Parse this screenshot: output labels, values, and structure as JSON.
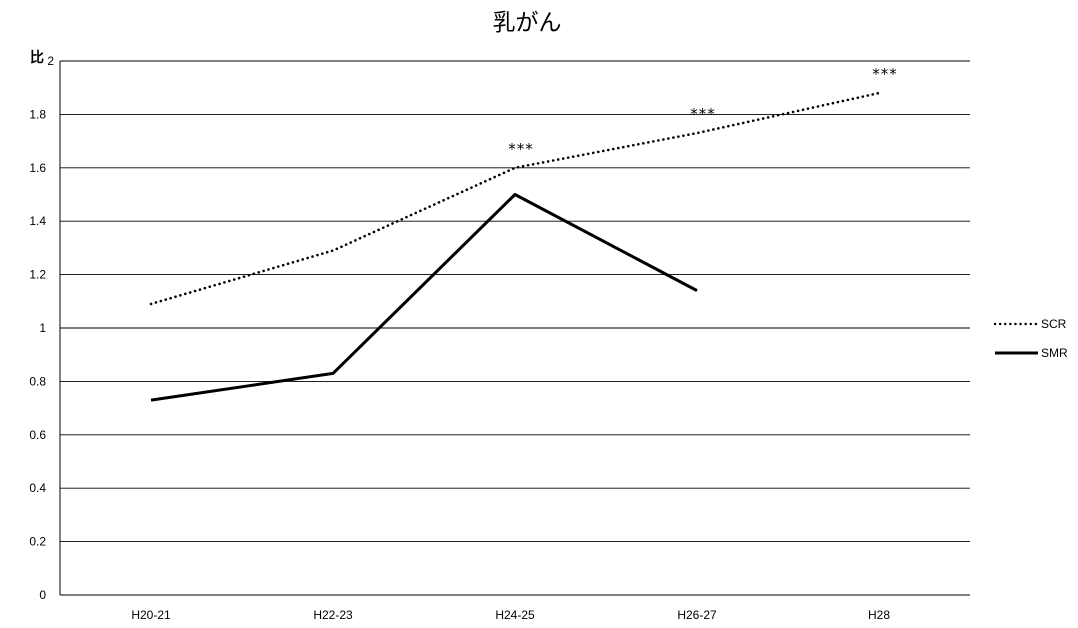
{
  "chart_data": {
    "type": "line",
    "title": "乳がん",
    "ylabel": "比",
    "xlabel": "",
    "categories": [
      "H20-21",
      "H22-23",
      "H24-25",
      "H26-27",
      "H28"
    ],
    "ylim": [
      0,
      2
    ],
    "yticks": [
      "0",
      "0.2",
      "0.4",
      "0.6",
      "0.8",
      "1",
      "1.2",
      "1.4",
      "1.6",
      "1.8",
      "2"
    ],
    "grid": true,
    "legend_position": "right",
    "series": [
      {
        "name": "SCR",
        "style": "dotted",
        "color": "#000000",
        "values": [
          1.09,
          1.29,
          1.6,
          1.73,
          1.88
        ]
      },
      {
        "name": "SMR",
        "style": "solid",
        "color": "#000000",
        "values": [
          0.73,
          0.83,
          1.5,
          1.14,
          null
        ]
      }
    ],
    "annotations": [
      {
        "series": "SCR",
        "index": 2,
        "text": "***"
      },
      {
        "series": "SCR",
        "index": 3,
        "text": "***"
      },
      {
        "series": "SCR",
        "index": 4,
        "text": "***"
      }
    ]
  }
}
